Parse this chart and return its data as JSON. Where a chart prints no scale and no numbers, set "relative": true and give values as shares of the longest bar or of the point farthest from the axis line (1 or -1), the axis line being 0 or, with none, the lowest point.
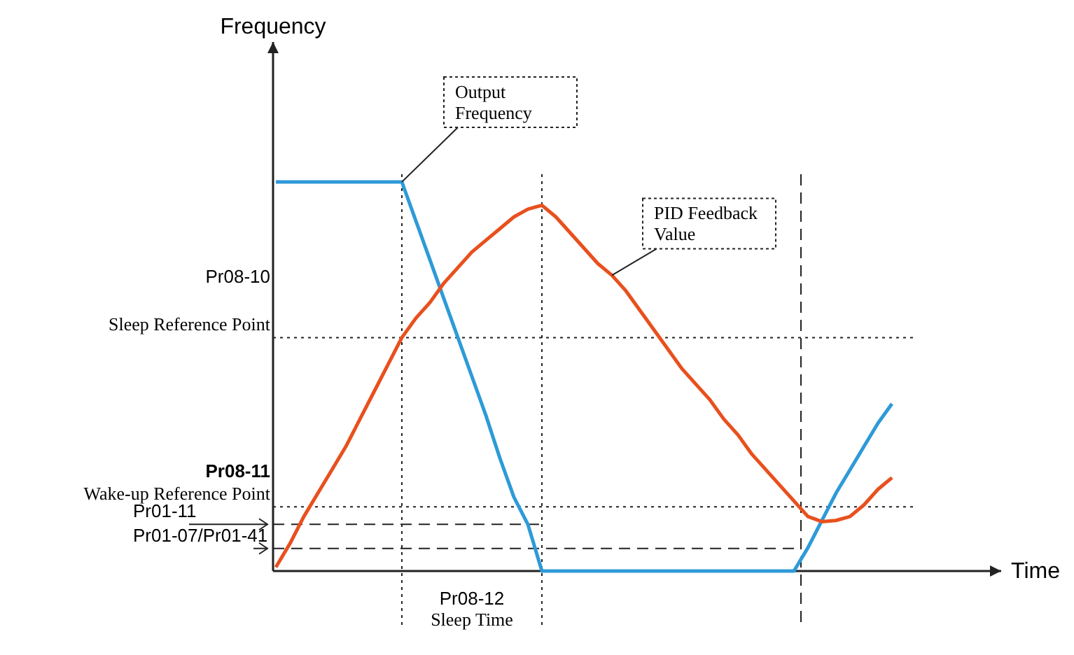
{
  "chart_data": {
    "type": "line",
    "relative": true,
    "xlabel": "Time",
    "legend": false,
    "grid": false,
    "marker": "none",
    "categories": [
      null,
      null,
      null,
      null,
      null,
      null,
      null,
      null,
      null,
      null,
      null,
      null,
      null,
      null,
      null,
      null,
      null,
      null,
      null,
      null,
      null,
      null,
      null,
      null,
      null,
      null,
      null,
      null,
      null,
      null,
      null,
      null,
      null,
      null,
      null,
      null,
      null,
      null,
      null,
      null,
      null,
      null,
      null,
      null,
      null
    ],
    "series": [
      {
        "name": "Output\nFrequency",
        "color": "#2e9ad8",
        "values": [
          1,
          1,
          1,
          1,
          1,
          1,
          1,
          1,
          1,
          1,
          0.9,
          0.8,
          0.7,
          0.6,
          0.5,
          0.4,
          0.29,
          0.19,
          0.12,
          0,
          0,
          0,
          0,
          0,
          0,
          0,
          0,
          0,
          0,
          0,
          0,
          0,
          0,
          0,
          0,
          0,
          0,
          0,
          0.06,
          0.13,
          0.2,
          0.26,
          0.32,
          0.38,
          0.43
        ]
      },
      {
        "name": "PID Feedback\nValue",
        "color": "#e8501e",
        "values": [
          0.01,
          0.07,
          0.14,
          0.2,
          0.26,
          0.32,
          0.39,
          0.46,
          0.53,
          0.6,
          0.65,
          0.69,
          0.74,
          0.78,
          0.82,
          0.85,
          0.88,
          0.91,
          0.93,
          0.94,
          0.91,
          0.87,
          0.83,
          0.79,
          0.76,
          0.72,
          0.67,
          0.62,
          0.57,
          0.52,
          0.48,
          0.44,
          0.39,
          0.35,
          0.3,
          0.26,
          0.22,
          0.18,
          0.14,
          0.127,
          0.13,
          0.14,
          0.17,
          0.21,
          0.24
        ]
      }
    ],
    "ref_lines": [
      {
        "axis": "y",
        "value": 0.6,
        "label": "Pr08-10\nSleep Reference Point",
        "line_style": "dotted"
      },
      {
        "axis": "y",
        "value": 0.165,
        "label": "Pr08-11\nWake-up Reference Point",
        "line_style": "dotted"
      },
      {
        "axis": "y",
        "value": 0.12,
        "label": "Pr01-11",
        "line_style": "dashed"
      },
      {
        "axis": "y",
        "value": 0.058,
        "label": "Pr01-07/Pr01-41",
        "line_style": "dashed"
      }
    ],
    "annotations": [
      "Frequency",
      "Pr08-12\nSleep Time"
    ]
  }
}
